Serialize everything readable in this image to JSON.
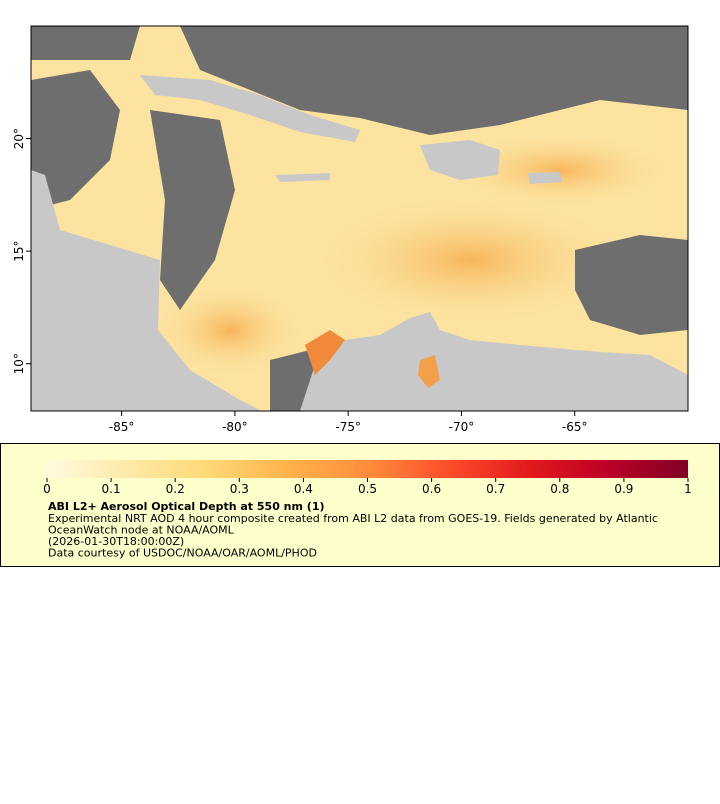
{
  "chart_data": {
    "type": "map",
    "xlim": [
      -89,
      -60
    ],
    "ylim": [
      7.9,
      25
    ],
    "xticks": [
      {
        "value": -85,
        "label": "-85°"
      },
      {
        "value": -80,
        "label": "-80°"
      },
      {
        "value": -75,
        "label": "-75°"
      },
      {
        "value": -70,
        "label": "-70°"
      },
      {
        "value": -65,
        "label": "-65°"
      }
    ],
    "yticks": [
      {
        "value": 10,
        "label": "10°"
      },
      {
        "value": 15,
        "label": "15°"
      },
      {
        "value": 20,
        "label": "20°"
      }
    ],
    "colorbar": {
      "lim": [
        0,
        1
      ],
      "ticks": [
        0,
        0.1,
        0.2,
        0.3,
        0.4,
        0.5,
        0.6,
        0.7,
        0.8,
        0.9,
        1
      ],
      "colormap": [
        "#fffbe0",
        "#fee9a8",
        "#fed976",
        "#feb24c",
        "#fd8d3c",
        "#fc4e2a",
        "#e31a1c",
        "#bd0026",
        "#800026"
      ]
    },
    "title": "ABI L2+ Aerosol Optical Depth at 550 nm (1)",
    "notes": [
      "Experimental NRT AOD 4 hour composite created from ABI L2 data from GOES-19. Fields generated by Atlantic",
      "OceanWatch node at NOAA/AOML",
      "(2026-01-30T18:00:00Z)",
      "Data courtesy of USDOC/NOAA/OAR/AOML/PHOD"
    ]
  }
}
